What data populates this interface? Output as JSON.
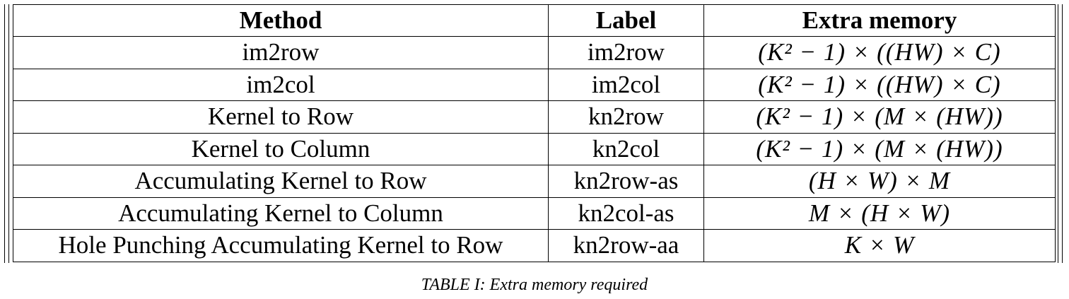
{
  "table": {
    "headers": [
      "Method",
      "Label",
      "Extra memory"
    ],
    "rows": [
      {
        "method": "im2row",
        "label": "im2row",
        "memory": "(K² − 1) × ((HW) × C)"
      },
      {
        "method": "im2col",
        "label": "im2col",
        "memory": "(K² − 1) × ((HW) × C)"
      },
      {
        "method": "Kernel to Row",
        "label": "kn2row",
        "memory": "(K² − 1) × (M × (HW))"
      },
      {
        "method": "Kernel to Column",
        "label": "kn2col",
        "memory": "(K² − 1) × (M × (HW))"
      },
      {
        "method": "Accumulating Kernel to Row",
        "label": "kn2row-as",
        "memory": "(H × W) × M"
      },
      {
        "method": "Accumulating Kernel to Column",
        "label": "kn2col-as",
        "memory": "M × (H × W)"
      },
      {
        "method": "Hole Punching Accumulating Kernel to Row",
        "label": "kn2row-aa",
        "memory": "K × W"
      }
    ]
  },
  "caption": "TABLE I: Extra memory required"
}
